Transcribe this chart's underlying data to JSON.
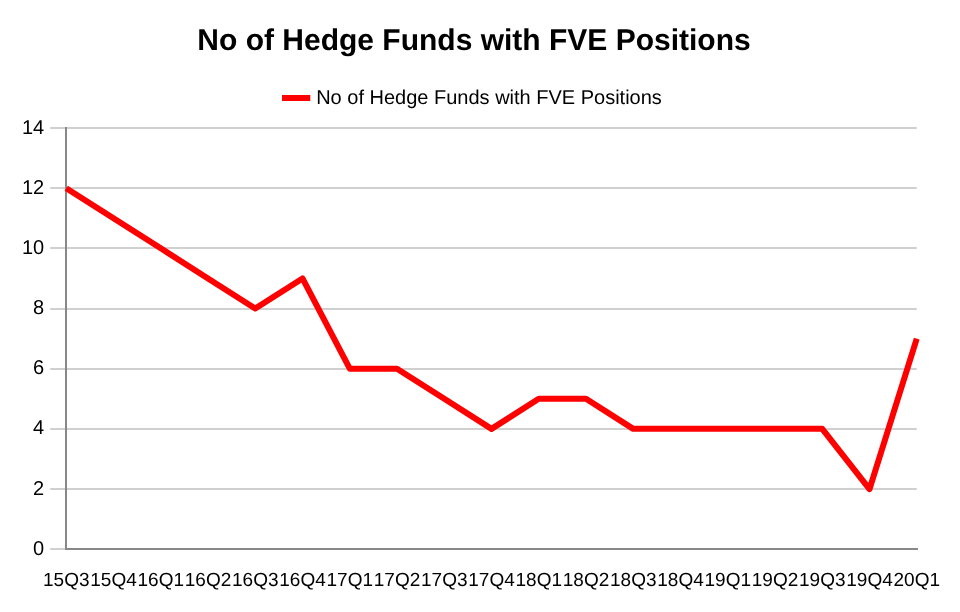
{
  "chart_data": {
    "type": "line",
    "title": "No of Hedge Funds with FVE Positions",
    "categories": [
      "15Q3",
      "15Q4",
      "16Q1",
      "16Q2",
      "16Q3",
      "16Q4",
      "17Q1",
      "17Q2",
      "17Q3",
      "17Q4",
      "18Q1",
      "18Q2",
      "18Q3",
      "18Q4",
      "19Q1",
      "19Q2",
      "19Q3",
      "19Q4",
      "20Q1"
    ],
    "series": [
      {
        "name": "No of Hedge Funds with FVE Positions",
        "color": "#ff0000",
        "values": [
          12,
          11,
          10,
          9,
          8,
          9,
          6,
          6,
          5,
          4,
          5,
          5,
          4,
          4,
          4,
          4,
          4,
          2,
          7
        ]
      }
    ],
    "ylim": [
      0,
      14
    ],
    "yticks": [
      0,
      2,
      4,
      6,
      8,
      10,
      12,
      14
    ],
    "grid": "y",
    "legend": "top",
    "marker": "none",
    "line_style": "solid"
  }
}
